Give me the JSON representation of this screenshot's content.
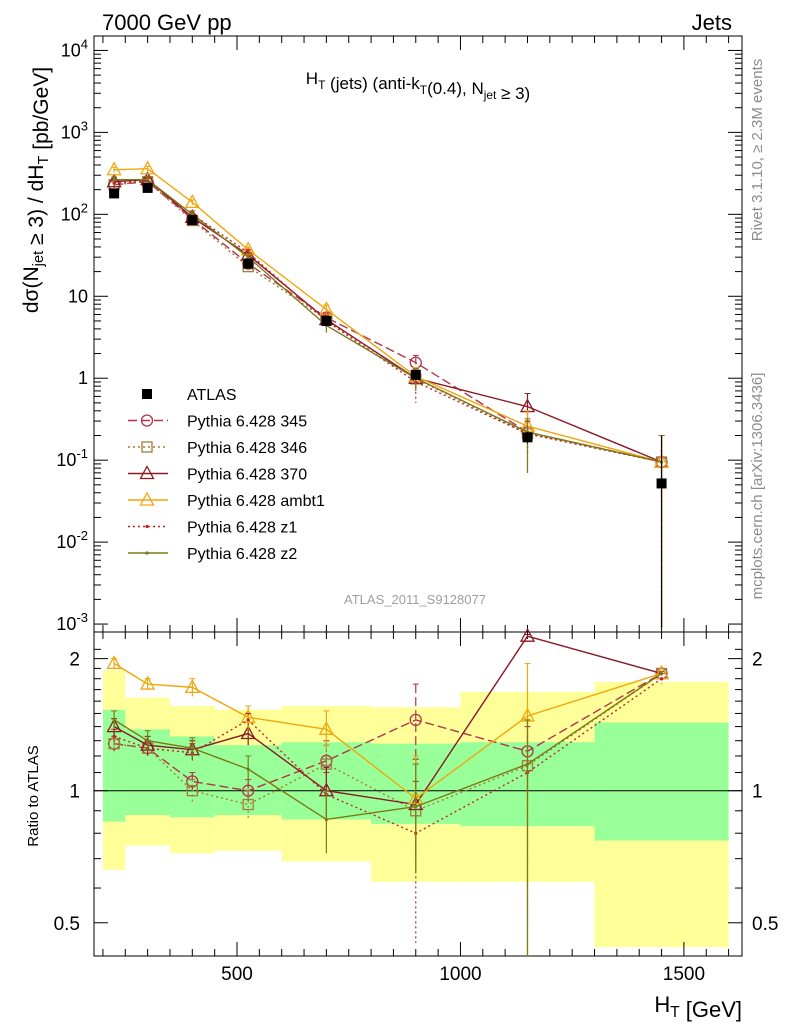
{
  "header": {
    "left": "7000 GeV pp",
    "right": "Jets"
  },
  "side_labels": {
    "top": "Rivet 3.1.10, ≥ 2.3M events",
    "bottom": "mcplots.cern.ch [arXiv:1306.3436]"
  },
  "chart_data": [
    {
      "type": "line",
      "panel": "main",
      "title": "H_T (jets) (anti-k_T(0.4), N_jet ≥ 3)",
      "xlabel": "H_T [GeV]",
      "ylabel": "dσ(N_jet ≥ 3) / dH_T [pb/GeV]",
      "yscale": "log",
      "xlim": [
        180,
        1630
      ],
      "ylim": [
        0.0008,
        15000
      ],
      "y_ticks": [
        "10^-3",
        "10^-2",
        "10^-1",
        "1",
        "10",
        "10^2",
        "10^3",
        "10^4"
      ],
      "x_ticks": [
        500,
        1000,
        1500
      ],
      "watermark": "ATLAS_2011_S9128077",
      "legend_position": "lower-left",
      "bin_edges": [
        200,
        250,
        350,
        450,
        600,
        800,
        1000,
        1300,
        1600
      ],
      "x": [
        225,
        300,
        400,
        525,
        700,
        900,
        1150,
        1450
      ],
      "atlas": {
        "name": "ATLAS",
        "values": [
          180,
          210,
          85,
          25,
          5.0,
          1.1,
          0.19,
          0.052
        ],
        "err_up": [
          200,
          235,
          95,
          28,
          5.6,
          1.25,
          0.22,
          0.2
        ],
        "err_dn": [
          162,
          186,
          76,
          22,
          4.4,
          0.95,
          0.16,
          0.0009
        ]
      },
      "series": [
        {
          "name": "Pythia 6.428 345",
          "color": "#b2344c",
          "dash": "9,4",
          "marker": "circle",
          "values": [
            230,
            250,
            88,
            25,
            5.5,
            1.55,
            0.22,
            0.095
          ],
          "err_up": [
            250,
            275,
            96,
            28,
            6.3,
            1.9,
            0.3,
            0.2
          ],
          "err_dn": [
            210,
            225,
            80,
            22,
            4.7,
            1.2,
            0.14,
            0.0009
          ]
        },
        {
          "name": "Pythia 6.428 346",
          "color": "#a57b3b",
          "dash": "2,3",
          "marker": "square",
          "values": [
            230,
            250,
            84,
            23,
            5.2,
            0.98,
            0.21,
            0.095
          ],
          "err_up": [
            250,
            275,
            92,
            26,
            6.0,
            1.25,
            0.3,
            0.2
          ],
          "err_dn": [
            210,
            225,
            76,
            20,
            4.4,
            0.72,
            0.12,
            0.0009
          ]
        },
        {
          "name": "Pythia 6.428 370",
          "color": "#8a1a26",
          "dash": "",
          "marker": "triangle",
          "values": [
            250,
            265,
            92,
            32,
            5.2,
            1.0,
            0.45,
            0.095
          ],
          "err_up": [
            270,
            290,
            100,
            35,
            6.0,
            1.3,
            0.65,
            0.2
          ],
          "err_dn": [
            230,
            240,
            84,
            29,
            4.4,
            0.75,
            0.28,
            0.0009
          ]
        },
        {
          "name": "Pythia 6.428 ambt1",
          "color": "#f0a70f",
          "dash": "",
          "marker": "triangle",
          "values": [
            350,
            360,
            140,
            37,
            6.9,
            1.05,
            0.26,
            0.095
          ],
          "err_up": [
            375,
            385,
            150,
            40,
            7.8,
            1.35,
            0.4,
            0.2
          ],
          "err_dn": [
            325,
            335,
            130,
            34,
            6.0,
            0.75,
            0.12,
            0.0009
          ]
        },
        {
          "name": "Pythia 6.428 z1",
          "color": "#c0222a",
          "dash": "2,3",
          "marker": "dot",
          "values": [
            240,
            255,
            100,
            34,
            5.0,
            0.9,
            0.21,
            0.095
          ],
          "err_up": [
            260,
            280,
            110,
            37,
            5.9,
            1.2,
            0.3,
            0.2
          ],
          "err_dn": [
            220,
            230,
            90,
            31,
            4.1,
            0.5,
            0.07,
            0.0009
          ]
        },
        {
          "name": "Pythia 6.428 z2",
          "color": "#7b7a17",
          "dash": "",
          "marker": "dot",
          "values": [
            265,
            265,
            100,
            30,
            4.4,
            1.0,
            0.22,
            0.095
          ],
          "err_up": [
            285,
            290,
            110,
            33,
            5.2,
            1.3,
            0.32,
            0.2
          ],
          "err_dn": [
            245,
            240,
            90,
            27,
            3.6,
            0.7,
            0.07,
            0.0009
          ]
        }
      ]
    },
    {
      "type": "line",
      "panel": "ratio",
      "ylabel": "Ratio to ATLAS",
      "ylim": [
        0.42,
        2.3
      ],
      "y_ticks_left": [
        "0.5",
        "1",
        "2"
      ],
      "y_ticks_right": [
        "0.5",
        "1",
        "2"
      ],
      "reference": 1,
      "band_stat": {
        "color": "#99ff99",
        "low": [
          0.85,
          0.88,
          0.87,
          0.88,
          0.86,
          0.84,
          0.83,
          0.77
        ],
        "high": [
          1.53,
          1.38,
          1.33,
          1.27,
          1.29,
          1.28,
          1.29,
          1.43
        ]
      },
      "band_total": {
        "color": "#ffff99",
        "low": [
          0.66,
          0.75,
          0.72,
          0.73,
          0.69,
          0.62,
          0.62,
          0.44
        ],
        "high": [
          1.88,
          1.63,
          1.56,
          1.53,
          1.56,
          1.55,
          1.68,
          1.77
        ]
      },
      "series": [
        {
          "name": "Pythia 6.428 345",
          "values": [
            1.28,
            1.25,
            1.05,
            1.0,
            1.17,
            1.45,
            1.23,
            1.85
          ],
          "err_up": [
            1.33,
            1.3,
            1.1,
            1.06,
            1.3,
            1.75,
            1.45,
            1.87
          ],
          "err_dn": [
            1.23,
            1.2,
            1.0,
            0.94,
            1.05,
            1.15,
            1.0,
            1.83
          ]
        },
        {
          "name": "Pythia 6.428 346",
          "values": [
            1.28,
            1.25,
            1.0,
            0.93,
            1.15,
            0.9,
            1.14,
            1.85
          ],
          "err_up": [
            1.33,
            1.3,
            1.06,
            1.0,
            1.27,
            1.15,
            1.45,
            1.87
          ],
          "err_dn": [
            1.23,
            1.2,
            0.94,
            0.86,
            1.03,
            0.65,
            0.42,
            1.83
          ]
        },
        {
          "name": "Pythia 6.428 370",
          "values": [
            1.4,
            1.27,
            1.24,
            1.35,
            1.0,
            0.93,
            2.25,
            1.85
          ],
          "err_up": [
            1.46,
            1.33,
            1.3,
            1.43,
            1.13,
            1.18,
            2.27,
            1.87
          ],
          "err_dn": [
            1.34,
            1.21,
            1.18,
            1.27,
            0.87,
            0.7,
            2.23,
            1.83
          ]
        },
        {
          "name": "Pythia 6.428 ambt1",
          "values": [
            1.95,
            1.75,
            1.72,
            1.47,
            1.38,
            0.96,
            1.48,
            1.85
          ],
          "err_up": [
            2.0,
            1.8,
            1.8,
            1.56,
            1.52,
            1.2,
            1.95,
            1.87
          ],
          "err_dn": [
            1.9,
            1.7,
            1.64,
            1.38,
            1.24,
            0.7,
            0.42,
            1.83
          ]
        },
        {
          "name": "Pythia 6.428 z1",
          "values": [
            1.33,
            1.25,
            1.22,
            1.45,
            0.98,
            0.8,
            1.1,
            1.8
          ],
          "err_up": [
            1.38,
            1.3,
            1.28,
            1.5,
            1.1,
            1.05,
            1.4,
            1.85
          ],
          "err_dn": [
            1.28,
            1.2,
            1.16,
            1.4,
            0.86,
            0.45,
            0.5,
            1.75
          ]
        },
        {
          "name": "Pythia 6.428 z2",
          "values": [
            1.45,
            1.3,
            1.25,
            1.12,
            0.86,
            0.92,
            1.15,
            1.85
          ],
          "err_up": [
            1.52,
            1.37,
            1.32,
            1.2,
            1.0,
            1.15,
            1.45,
            1.87
          ],
          "err_dn": [
            1.38,
            1.23,
            1.18,
            1.04,
            0.72,
            0.65,
            0.42,
            1.83
          ]
        }
      ]
    }
  ]
}
